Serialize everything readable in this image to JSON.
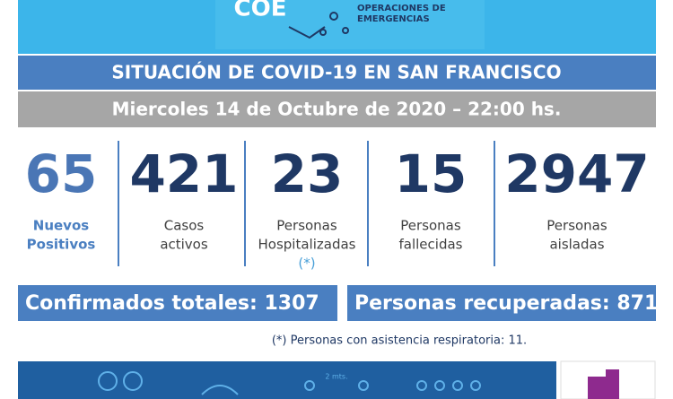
{
  "header": {
    "logo": "COE",
    "org_lines": [
      "OPERACIONES DE",
      "EMERGENCIAS"
    ]
  },
  "title": "SITUACIÓN DE COVID-19 EN SAN FRANCISCO",
  "date": "Miercoles 14 de Octubre de 2020 – 22:00 hs.",
  "stats": [
    {
      "value": 65,
      "label": [
        "Nuevos",
        "Positivos"
      ]
    },
    {
      "value": 421,
      "label": [
        "Casos",
        "activos"
      ]
    },
    {
      "value": 23,
      "label": [
        "Personas",
        "Hospitalizadas",
        "(*)"
      ]
    },
    {
      "value": 15,
      "label": [
        "Personas",
        "fallecidas"
      ]
    },
    {
      "value": 2947,
      "label": [
        "Personas",
        "aisladas"
      ]
    }
  ],
  "totals": [
    {
      "label": "Confirmados totales:",
      "value": 1307
    },
    {
      "label": "Personas recuperadas:",
      "value": 871
    }
  ],
  "footnote": "(*) Personas con asistencia respiratoria: 11.",
  "banner": {
    "distance": "2 mts."
  }
}
